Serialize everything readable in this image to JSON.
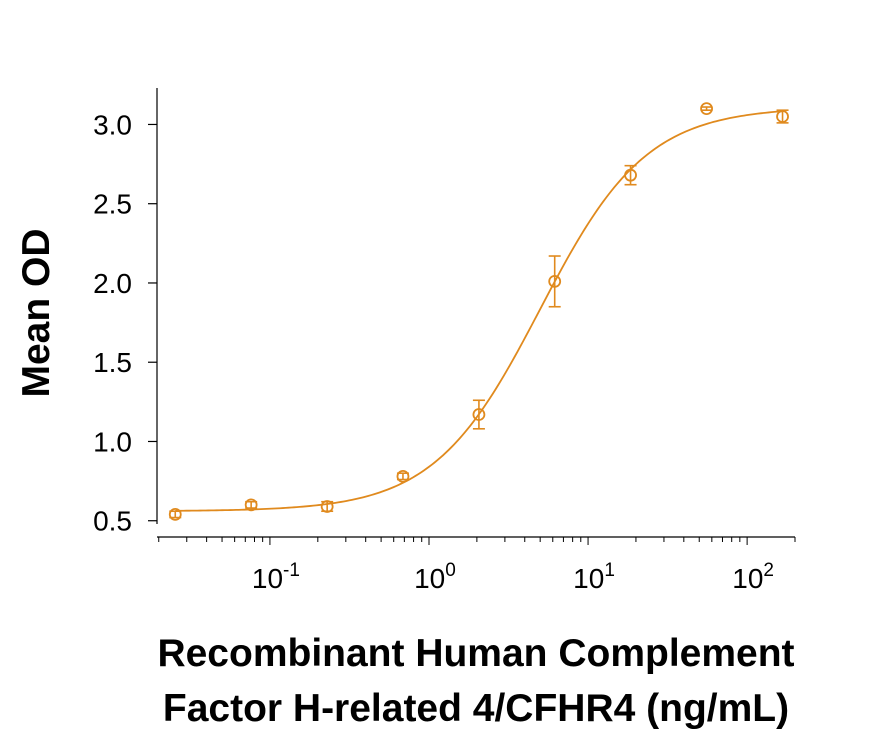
{
  "chart_data": {
    "type": "scatter",
    "title": "",
    "xlabel_lines": [
      "Recombinant Human Complement",
      "Factor H-related 4/CFHR4 (ng/mL)"
    ],
    "ylabel": "Mean OD",
    "x_scale": "log10",
    "xlim": [
      0.0195,
      200
    ],
    "ylim": [
      0.41,
      3.23
    ],
    "x_ticks": [
      {
        "value": 0.1,
        "base": "10",
        "exp": "-1"
      },
      {
        "value": 1,
        "base": "10",
        "exp": "0"
      },
      {
        "value": 10,
        "base": "10",
        "exp": "1"
      },
      {
        "value": 100,
        "base": "10",
        "exp": "2"
      }
    ],
    "y_ticks": [
      {
        "value": 0.5,
        "label": "0.5"
      },
      {
        "value": 1.0,
        "label": "1.0"
      },
      {
        "value": 1.5,
        "label": "1.5"
      },
      {
        "value": 2.0,
        "label": "2.0"
      },
      {
        "value": 2.5,
        "label": "2.5"
      },
      {
        "value": 3.0,
        "label": "3.0"
      }
    ],
    "grid": false,
    "legend": "none",
    "color": "#E08A1E",
    "series": [
      {
        "points": [
          {
            "x": 0.0254,
            "y": 0.54,
            "err": 0.02
          },
          {
            "x": 0.0762,
            "y": 0.6,
            "err": 0.02
          },
          {
            "x": 0.229,
            "y": 0.59,
            "err": 0.03
          },
          {
            "x": 0.686,
            "y": 0.78,
            "err": 0.02
          },
          {
            "x": 2.06,
            "y": 1.17,
            "err": 0.09
          },
          {
            "x": 6.17,
            "y": 2.01,
            "err": 0.16
          },
          {
            "x": 18.5,
            "y": 2.68,
            "err": 0.06
          },
          {
            "x": 55.6,
            "y": 3.1,
            "err": 0.01
          },
          {
            "x": 167,
            "y": 3.05,
            "err": 0.04
          }
        ]
      }
    ],
    "fit_curve": {
      "model": "4PL",
      "bottom": 0.56,
      "top": 3.11,
      "ec50": 5.0,
      "hill": 1.3
    }
  }
}
